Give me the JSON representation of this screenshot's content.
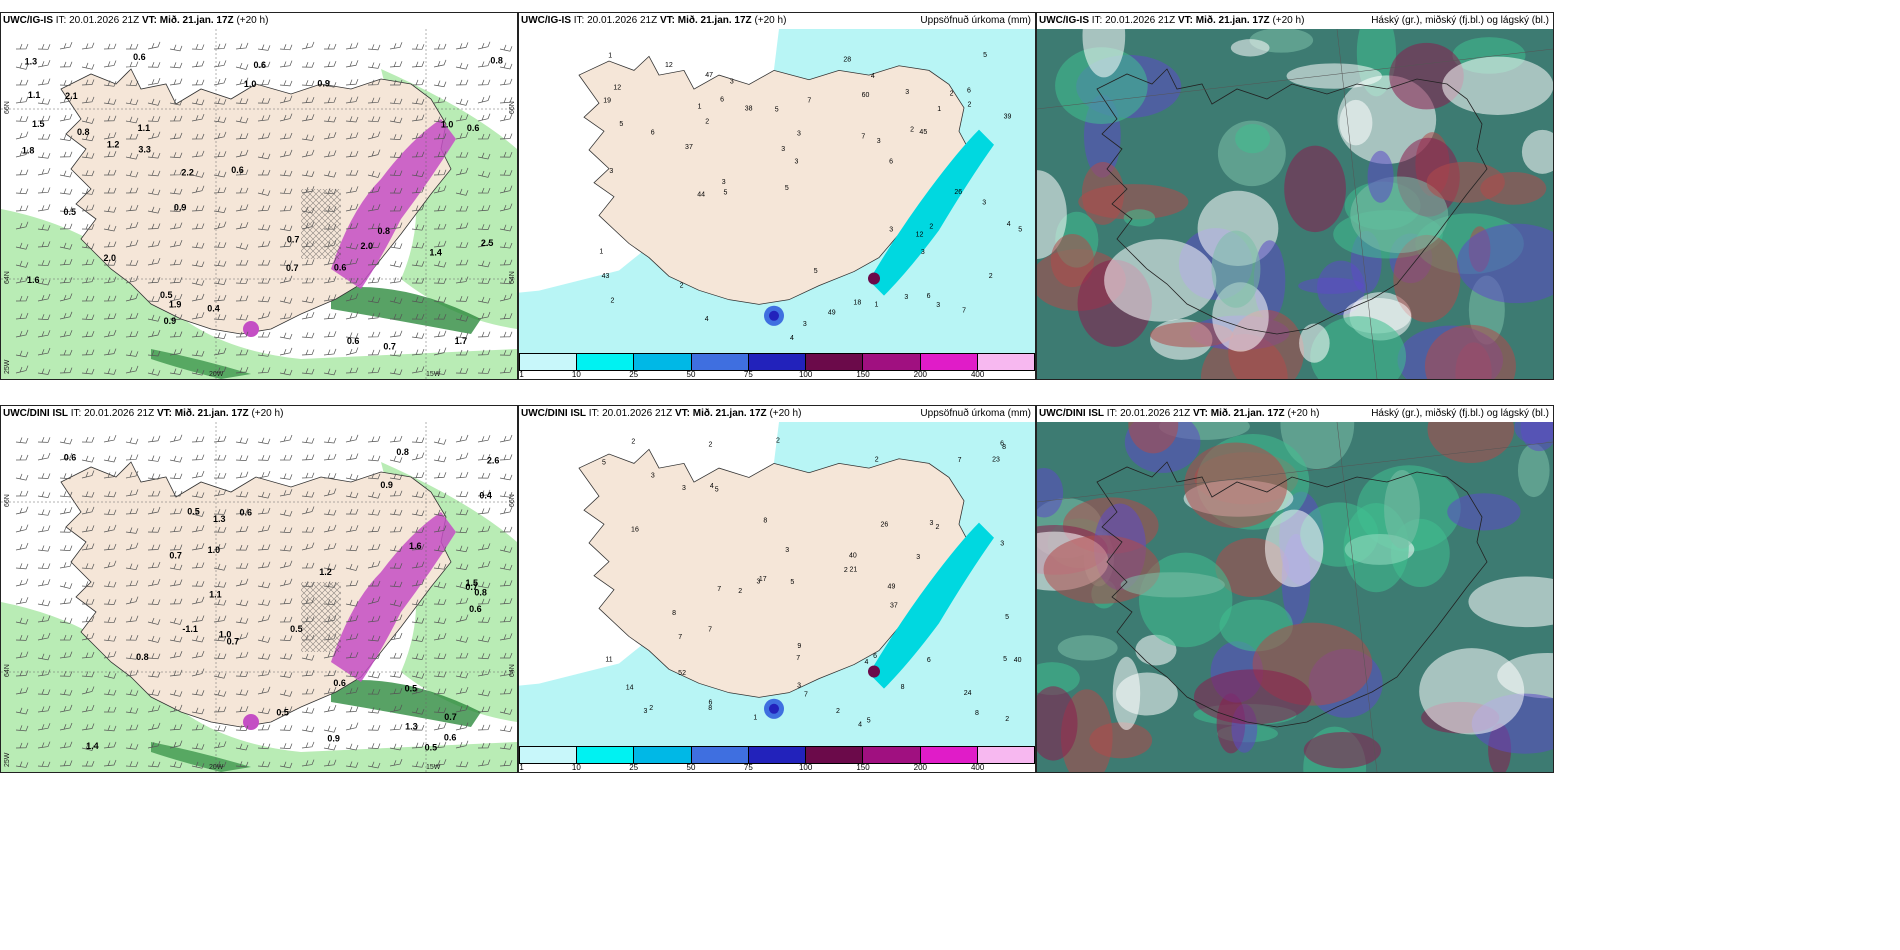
{
  "rows": [
    {
      "model": "UWC/IG-IS",
      "init_label": "IT:",
      "init": "20.01.2026 21Z",
      "valid_label": "VT:",
      "valid": "Mið. 21.jan. 17Z",
      "lead": "(+20 h)",
      "wind_panel": {
        "lat_labels": [
          "66N",
          "64N"
        ],
        "lat_labels_right": [
          "66N",
          "64N"
        ],
        "lon_labels": [
          "20W",
          "15W"
        ],
        "corner_label": "25W",
        "values": [
          "0.9",
          "0.6",
          "0.5",
          "0.6",
          "2.5",
          "1.1",
          "0.6",
          "2.0",
          "0.4",
          "2.1",
          "1.6",
          "1.4",
          "1.3",
          "1.2",
          "0.8",
          "1.5",
          "0.7",
          "0.8",
          "1.0",
          "0.6",
          "0.7",
          "0.6",
          "0.9",
          "0.6",
          "1.1",
          "0.9",
          "0.8",
          "0.7",
          "1.0",
          "2.0",
          "0.5",
          "2.2",
          "3.3",
          "1.7",
          "1.8",
          "1.9"
        ]
      },
      "precip_panel": {
        "title_right": "Uppsöfnuð úrkoma (mm)",
        "values": [
          "5",
          "2",
          "6",
          "3",
          "2",
          "4",
          "3",
          "5",
          "6",
          "5",
          "4",
          "6",
          "2",
          "2",
          "3",
          "4",
          "3",
          "5",
          "7",
          "18",
          "3",
          "3",
          "3",
          "5",
          "3",
          "37",
          "2",
          "4",
          "12",
          "44",
          "1",
          "1",
          "5",
          "6",
          "12",
          "47",
          "38",
          "60",
          "28",
          "43",
          "45",
          "1",
          "3",
          "6",
          "49",
          "39",
          "19",
          "26",
          "2",
          "2",
          "3",
          "3",
          "5",
          "12",
          "7",
          "3",
          "2",
          "3",
          "3",
          "7",
          "1",
          "1"
        ]
      },
      "cloud_panel": {
        "title_right": "Háský (gr.), miðský (fj.bl.) og lágský (bl.)"
      }
    },
    {
      "model": "UWC/DINI ISL",
      "init_label": "IT:",
      "init": "20.01.2026 21Z",
      "valid_label": "VT:",
      "valid": "Mið. 21.jan. 17Z",
      "lead": "(+20 h)",
      "wind_panel": {
        "lat_labels": [
          "66N",
          "64N"
        ],
        "lat_labels_right": [
          "66N",
          "64N"
        ],
        "lon_labels": [
          "20W",
          "15W"
        ],
        "corner_label": "25W",
        "values": [
          "-1.1",
          "0.6",
          "0.7",
          "0.6",
          "0.4",
          "1.3",
          "1.0",
          "0.5",
          "1.6",
          "1.5",
          "2.6",
          "0.6",
          "0.5",
          "0.9",
          "0.8",
          "1.2",
          "0.5",
          "0.5",
          "0.6",
          "0.7",
          "1.1",
          "1.0",
          "0.8",
          "0.7",
          "0.9",
          "0.6",
          "0.8",
          "0.7",
          "0.5",
          "1.3",
          "1.4"
        ]
      },
      "precip_panel": {
        "title_right": "Uppsöfnuð úrkoma (mm)",
        "values": [
          "1",
          "4",
          "6",
          "8",
          "2",
          "3",
          "7",
          "8",
          "2",
          "8",
          "7",
          "7",
          "17",
          "7",
          "2",
          "2",
          "16",
          "8",
          "2",
          "5",
          "4",
          "8",
          "40",
          "3",
          "2",
          "8",
          "11",
          "7",
          "2",
          "37",
          "5",
          "5",
          "9",
          "23",
          "52",
          "49",
          "5",
          "14",
          "26",
          "24",
          "21",
          "3",
          "40",
          "2",
          "5",
          "6",
          "5",
          "2",
          "3",
          "3",
          "6",
          "3",
          "2",
          "6",
          "7",
          "3",
          "3",
          "3",
          "4"
        ]
      },
      "cloud_panel": {
        "title_right": "Háský (gr.), miðský (fj.bl.) og lágský (bl.)"
      }
    }
  ],
  "colorbar": {
    "ticks": [
      "1",
      "10",
      "25",
      "50",
      "75",
      "100",
      "150",
      "200",
      "400"
    ],
    "colors": [
      "#c8f7fa",
      "#00f2f2",
      "#00b8e6",
      "#3f6fe0",
      "#2222bb",
      "#6b0a4a",
      "#a01080",
      "#e01cc8",
      "#f7b8f0"
    ]
  },
  "palette": {
    "land": "#f5e6d8",
    "precip_light": "#b8f5f5",
    "precip_mid": "#00d8e0",
    "wind_green": "#b9ecb5",
    "wind_dark": "#2e8b3e",
    "magenta": "#c44ec4",
    "cloud_base": "#3d7b72",
    "cloud_high": "#8b1d4f",
    "cloud_mid": "#5c4ac6"
  }
}
